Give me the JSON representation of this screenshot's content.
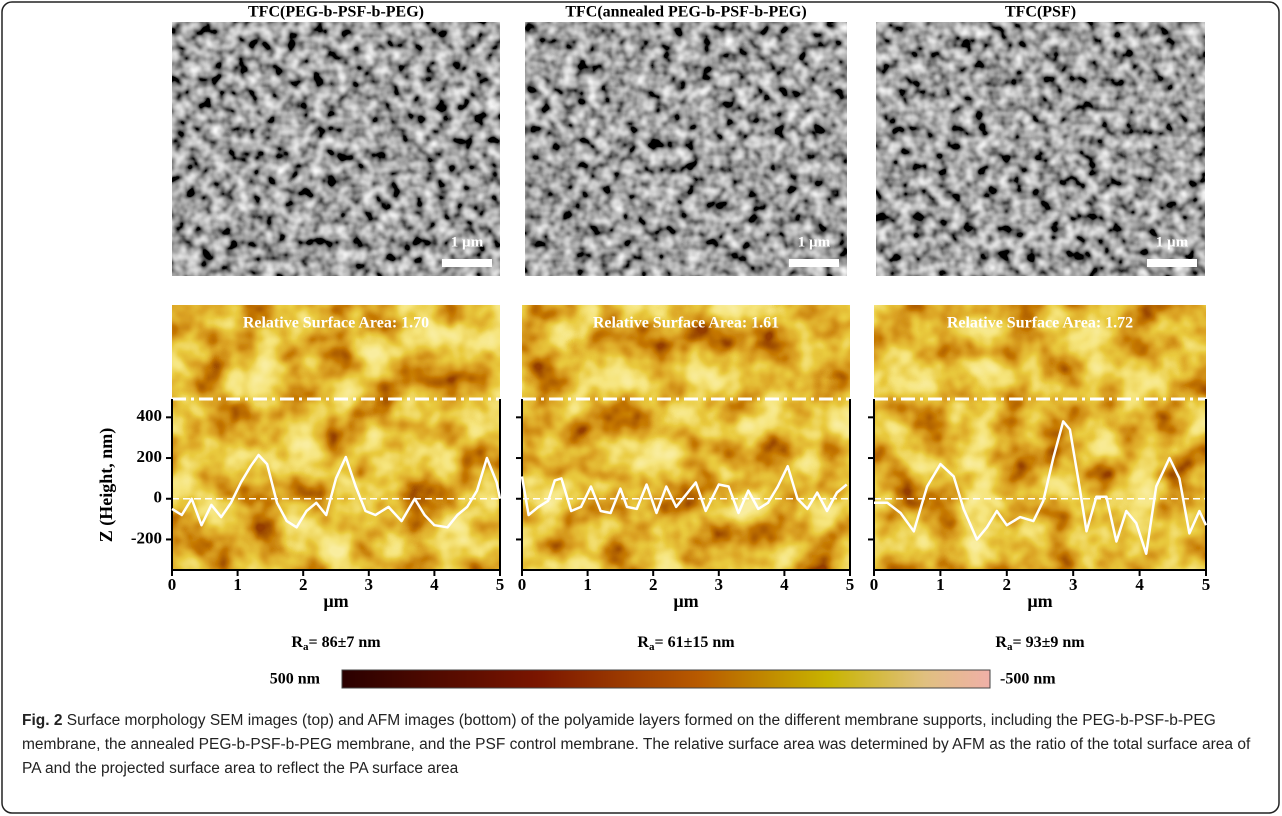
{
  "chart_data": [
    {
      "type": "line",
      "title": "TFC(PEG-b-PSF-b-PEG)",
      "scale_bar": "1 µm",
      "annotation": "Relative Surface Area: 1.70",
      "ylabel": "Z (Height, nm)",
      "xlabel": "µm",
      "roughness": {
        "symbol": "R",
        "subscript": "a",
        "text": "= 86±7 nm"
      },
      "xlim": [
        0,
        5
      ],
      "xticks": [
        0,
        1,
        2,
        3,
        4,
        5
      ],
      "ylim": [
        -350,
        490
      ],
      "yticks": [
        -200,
        0,
        200,
        400
      ],
      "x": [
        0,
        0.15,
        0.3,
        0.45,
        0.6,
        0.75,
        0.9,
        1.05,
        1.2,
        1.32,
        1.45,
        1.6,
        1.75,
        1.9,
        2.05,
        2.2,
        2.35,
        2.5,
        2.65,
        2.8,
        2.95,
        3.1,
        3.3,
        3.5,
        3.7,
        3.85,
        4.0,
        4.2,
        4.35,
        4.5,
        4.65,
        4.8,
        4.95,
        5.0
      ],
      "values": [
        -50,
        -80,
        0,
        -130,
        -30,
        -90,
        -20,
        80,
        160,
        215,
        170,
        -20,
        -110,
        -140,
        -60,
        -20,
        -80,
        100,
        205,
        60,
        -60,
        -80,
        -40,
        -110,
        0,
        -80,
        -130,
        -140,
        -80,
        -40,
        40,
        200,
        80,
        0
      ],
      "color": "#ffffff"
    },
    {
      "type": "line",
      "title": "TFC(annealed PEG-b-PSF-b-PEG)",
      "scale_bar": "1 µm",
      "annotation": "Relative Surface Area: 1.61",
      "xlabel": "µm",
      "roughness": {
        "symbol": "R",
        "subscript": "a",
        "text": "= 61±15 nm"
      },
      "xlim": [
        0,
        5
      ],
      "xticks": [
        0,
        1,
        2,
        3,
        4,
        5
      ],
      "ylim": [
        -350,
        490
      ],
      "x": [
        0,
        0.1,
        0.25,
        0.4,
        0.5,
        0.6,
        0.75,
        0.9,
        1.05,
        1.2,
        1.35,
        1.5,
        1.6,
        1.75,
        1.9,
        2.05,
        2.2,
        2.35,
        2.5,
        2.65,
        2.8,
        3.0,
        3.15,
        3.3,
        3.45,
        3.6,
        3.75,
        3.9,
        4.05,
        4.2,
        4.35,
        4.5,
        4.65,
        4.8,
        4.95
      ],
      "values": [
        110,
        -80,
        -40,
        -10,
        90,
        100,
        -60,
        -40,
        60,
        -60,
        -70,
        50,
        -40,
        -50,
        70,
        -70,
        60,
        -40,
        20,
        80,
        -60,
        70,
        60,
        -70,
        40,
        -50,
        -20,
        60,
        160,
        0,
        -50,
        30,
        -60,
        30,
        70
      ],
      "color": "#ffffff"
    },
    {
      "type": "line",
      "title": "TFC(PSF)",
      "scale_bar": "1 µm",
      "annotation": "Relative Surface Area: 1.72",
      "xlabel": "µm",
      "roughness": {
        "symbol": "R",
        "subscript": "a",
        "text": "= 93±9 nm"
      },
      "xlim": [
        0,
        5
      ],
      "xticks": [
        0,
        1,
        2,
        3,
        4,
        5
      ],
      "ylim": [
        -350,
        490
      ],
      "x": [
        0,
        0.2,
        0.4,
        0.6,
        0.8,
        1.0,
        1.2,
        1.35,
        1.55,
        1.7,
        1.85,
        2.0,
        2.2,
        2.4,
        2.55,
        2.7,
        2.85,
        2.95,
        3.1,
        3.2,
        3.35,
        3.5,
        3.65,
        3.8,
        3.95,
        4.1,
        4.25,
        4.45,
        4.6,
        4.75,
        4.9,
        5.0
      ],
      "values": [
        -20,
        -20,
        -70,
        -160,
        60,
        170,
        110,
        -50,
        -200,
        -140,
        -60,
        -130,
        -90,
        -110,
        -10,
        200,
        380,
        340,
        50,
        -160,
        10,
        10,
        -210,
        -60,
        -120,
        -270,
        60,
        200,
        100,
        -170,
        -60,
        -130
      ],
      "color": "#ffffff"
    }
  ],
  "colorbar": {
    "min_label": "500 nm",
    "max_label": "-500 nm"
  },
  "caption": {
    "label": "Fig. 2",
    "text": "Surface morphology SEM images (top) and AFM images (bottom) of the polyamide layers formed on the different membrane supports, including the PEG-b-PSF-b-PEG membrane, the annealed PEG-b-PSF-b-PEG membrane, and the PSF control membrane. The relative surface area was determined by AFM as the ratio of the total surface area of PA and the projected surface area to reflect the PA surface area"
  }
}
